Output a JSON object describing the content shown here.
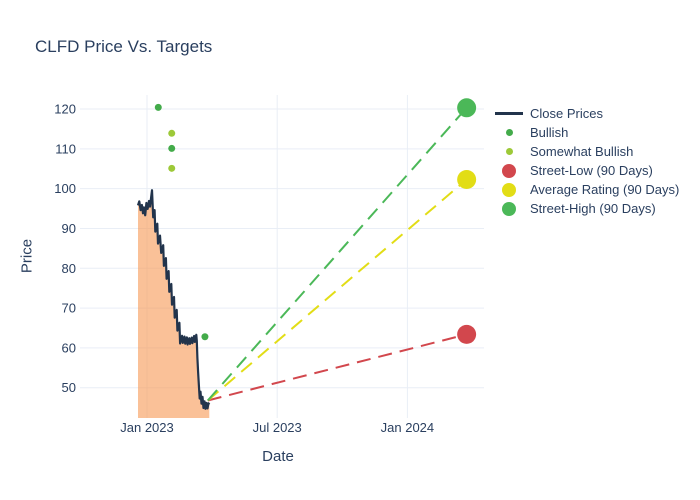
{
  "chart_data": {
    "type": "line",
    "title": "CLFD Price Vs. Targets",
    "xlabel": "Date",
    "ylabel": "Price",
    "x_unit": "months since Jan 2023",
    "x_ticks": [
      {
        "label": "Jan 2023",
        "t": 0
      },
      {
        "label": "Jul 2023",
        "t": 6
      },
      {
        "label": "Jan 2024",
        "t": 12
      }
    ],
    "y_ticks": [
      50,
      60,
      70,
      80,
      90,
      100,
      110,
      120
    ],
    "ylim": [
      42.4,
      123.0
    ],
    "xlim_months": [
      -3.1,
      15.5
    ],
    "grid": true,
    "legend_position": "right",
    "background": "#ffffff",
    "text_color": "#2a3f5f",
    "grid_color": "#e9eef6",
    "series": {
      "close_prices": {
        "name": "Close Prices",
        "color": "#22344c",
        "fill_color": "rgba(247,152,84,0.6)",
        "points": [
          [
            -0.415,
            95.8
          ],
          [
            -0.355,
            96.8
          ],
          [
            -0.295,
            94.6
          ],
          [
            -0.235,
            95.9
          ],
          [
            -0.184,
            93.8
          ],
          [
            -0.138,
            95.3
          ],
          [
            -0.083,
            93.3
          ],
          [
            -0.028,
            96.4
          ],
          [
            0.028,
            94.9
          ],
          [
            0.092,
            96.9
          ],
          [
            0.138,
            95.5
          ],
          [
            0.23,
            99.6
          ],
          [
            0.286,
            92.8
          ],
          [
            0.35,
            94.6
          ],
          [
            0.382,
            89.2
          ],
          [
            0.475,
            91.2
          ],
          [
            0.507,
            86.2
          ],
          [
            0.599,
            88.2
          ],
          [
            0.654,
            83.85
          ],
          [
            0.747,
            85.8
          ],
          [
            0.779,
            80.6
          ],
          [
            0.871,
            82.55
          ],
          [
            0.903,
            77.35
          ],
          [
            0.995,
            79.3
          ],
          [
            1.028,
            74.1
          ],
          [
            1.12,
            76.05
          ],
          [
            1.152,
            70.85
          ],
          [
            1.244,
            72.8
          ],
          [
            1.276,
            67.6
          ],
          [
            1.369,
            69.55
          ],
          [
            1.401,
            64.35
          ],
          [
            1.493,
            66.3
          ],
          [
            1.525,
            61.1
          ],
          [
            1.618,
            63.05
          ],
          [
            1.65,
            61.25
          ],
          [
            1.728,
            62.85
          ],
          [
            1.76,
            61.05
          ],
          [
            1.839,
            62.65
          ],
          [
            1.871,
            60.85
          ],
          [
            1.949,
            62.45
          ],
          [
            1.982,
            61.0
          ],
          [
            2.06,
            62.6
          ],
          [
            2.092,
            61.2
          ],
          [
            2.171,
            63.0
          ],
          [
            2.203,
            61.5
          ],
          [
            2.272,
            63.3
          ],
          [
            2.295,
            61.8
          ],
          [
            2.323,
            57.5
          ],
          [
            2.355,
            54.0
          ],
          [
            2.392,
            50.5
          ],
          [
            2.429,
            47.3
          ],
          [
            2.465,
            49.0
          ],
          [
            2.512,
            46.0
          ],
          [
            2.558,
            47.7
          ],
          [
            2.604,
            44.9
          ],
          [
            2.65,
            46.6
          ],
          [
            2.696,
            44.7
          ],
          [
            2.742,
            46.2
          ],
          [
            2.788,
            44.8
          ],
          [
            2.834,
            46.1
          ],
          [
            2.871,
            45.8
          ]
        ]
      },
      "bullish": {
        "name": "Bullish",
        "color": "#43ab4a",
        "points": [
          [
            0.52,
            120.4
          ],
          [
            1.14,
            110.1
          ],
          [
            2.67,
            62.8
          ]
        ]
      },
      "somewhat_bullish": {
        "name": "Somewhat Bullish",
        "color": "#9dc938",
        "points": [
          [
            1.14,
            113.9
          ],
          [
            1.14,
            105.1
          ]
        ]
      },
      "street_low": {
        "name": "Street-Low (90 Days)",
        "color": "#d2474d",
        "from": [
          2.8,
          46.8
        ],
        "to": [
          14.73,
          63.4
        ]
      },
      "average_rating": {
        "name": "Average Rating (90 Days)",
        "color": "#e2dd16",
        "from": [
          2.8,
          46.8
        ],
        "to": [
          14.73,
          102.3
        ]
      },
      "street_high": {
        "name": "Street-High (90 Days)",
        "color": "#4bb858",
        "from": [
          2.8,
          46.8
        ],
        "to": [
          14.73,
          120.3
        ]
      }
    },
    "legend": [
      {
        "label": "Close Prices",
        "swatch": "line",
        "color": "#22344c",
        "name": "close-prices"
      },
      {
        "label": "Bullish",
        "swatch": "dot",
        "color": "#43ab4a",
        "name": "bullish"
      },
      {
        "label": "Somewhat Bullish",
        "swatch": "dot",
        "color": "#9dc938",
        "name": "somewhat-bullish"
      },
      {
        "label": "Street-Low (90 Days)",
        "swatch": "big",
        "color": "#d2474d",
        "name": "street-low"
      },
      {
        "label": "Average Rating (90 Days)",
        "swatch": "big",
        "color": "#e2dd16",
        "name": "average-rating"
      },
      {
        "label": "Street-High (90 Days)",
        "swatch": "big",
        "color": "#4bb858",
        "name": "street-high"
      }
    ]
  }
}
